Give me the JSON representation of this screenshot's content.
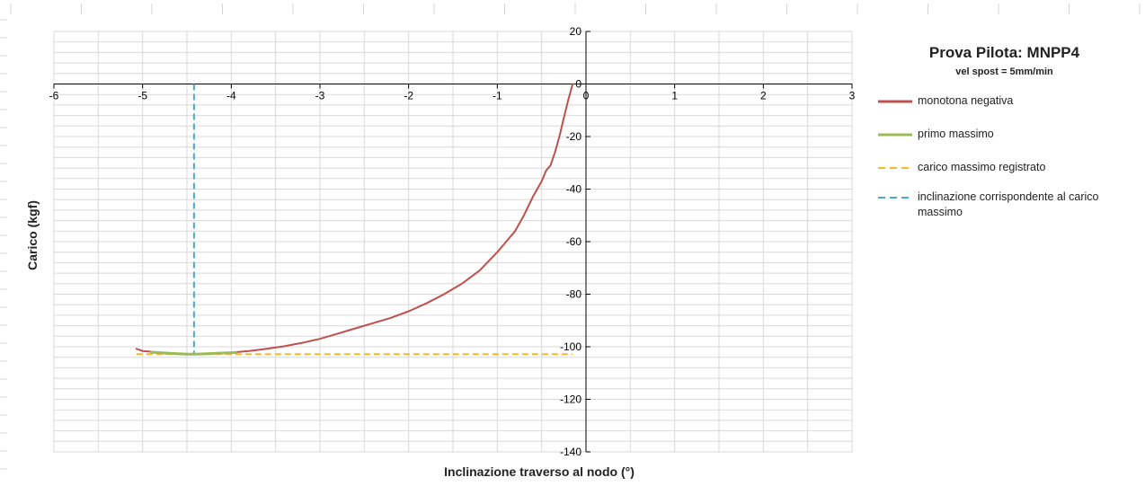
{
  "chart_data": {
    "type": "line",
    "title": "Prova Pilota: MNPP4",
    "subtitle": "vel spost = 5mm/min",
    "xlabel": "Inclinazione traverso al nodo (°)",
    "ylabel": "Carico (kgf)",
    "xlim": [
      -6,
      3
    ],
    "ylim": [
      -140,
      20
    ],
    "x_ticks": [
      "-6",
      "-5",
      "-4",
      "-3",
      "-2",
      "-1",
      "0",
      "1",
      "2",
      "3"
    ],
    "x_tick_values": [
      -6,
      -5,
      -4,
      -3,
      -2,
      -1,
      0,
      1,
      2,
      3
    ],
    "y_ticks": [
      "20",
      "0",
      "-20",
      "-40",
      "-60",
      "-80",
      "-100",
      "-120",
      "-140"
    ],
    "y_tick_values": [
      20,
      0,
      -20,
      -40,
      -60,
      -80,
      -100,
      -120,
      -140
    ],
    "grid": true,
    "legend_position": "right",
    "series": [
      {
        "name": "monotona negativa",
        "color": "#c0504d",
        "style": "solid",
        "x": [
          -0.15,
          -0.2,
          -0.25,
          -0.3,
          -0.35,
          -0.4,
          -0.45,
          -0.5,
          -0.6,
          -0.7,
          -0.8,
          -0.9,
          -1.0,
          -1.2,
          -1.4,
          -1.6,
          -1.8,
          -2.0,
          -2.2,
          -2.4,
          -2.6,
          -2.8,
          -3.0,
          -3.2,
          -3.4,
          -3.6,
          -3.8,
          -4.0,
          -4.2,
          -4.4,
          -4.6,
          -4.8,
          -5.0,
          -5.07
        ],
        "y": [
          0,
          -6,
          -13,
          -20,
          -26,
          -31,
          -33,
          -37,
          -43,
          -50,
          -56,
          -60,
          -64,
          -71,
          -76,
          -80,
          -83.5,
          -86.5,
          -89,
          -91,
          -93,
          -95,
          -97,
          -98.5,
          -99.8,
          -100.8,
          -101.6,
          -102.2,
          -102.6,
          -102.8,
          -102.6,
          -102.2,
          -101.6,
          -100.8
        ]
      },
      {
        "name": "primo massimo",
        "color": "#9bbb59",
        "style": "solid",
        "x": [
          -4.9,
          -4.7,
          -4.5,
          -4.4,
          -4.3,
          -4.1,
          -3.95
        ],
        "y": [
          -102.1,
          -102.5,
          -102.8,
          -102.8,
          -102.7,
          -102.4,
          -102.2
        ]
      },
      {
        "name": "carico massimo  registrato",
        "color": "#f7b731",
        "style": "dashed",
        "x": [
          -5.07,
          -0.15
        ],
        "y": [
          -102.8,
          -102.8
        ]
      },
      {
        "name": "inclinazione corrispondente al carico massimo",
        "color": "#4bacc6",
        "style": "dashed",
        "x": [
          -4.42,
          -4.42
        ],
        "y": [
          0,
          -102.8
        ]
      }
    ]
  },
  "legend": [
    {
      "label": "monotona negativa",
      "color": "#c0504d",
      "style": "solid"
    },
    {
      "label": "primo massimo",
      "color": "#9bbb59",
      "style": "solid"
    },
    {
      "label": "carico massimo  registrato",
      "color": "#f7b731",
      "style": "dashed"
    },
    {
      "label": "inclinazione corrispondente al carico massimo",
      "color": "#4bacc6",
      "style": "dashed"
    }
  ]
}
